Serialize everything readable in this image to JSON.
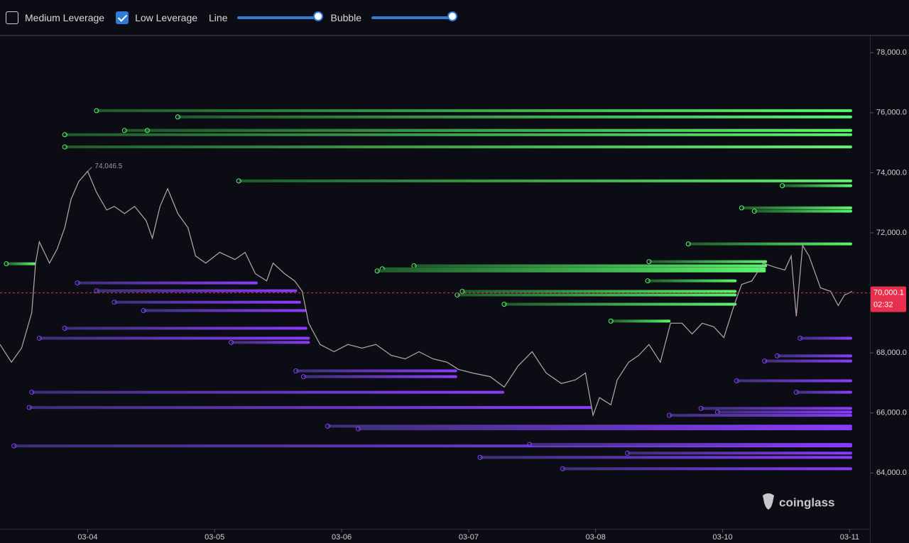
{
  "controls": {
    "medium": {
      "label": "Medium Leverage",
      "checked": false
    },
    "low": {
      "label": "Low Leverage",
      "checked": true
    },
    "line": "Line",
    "bubble": "Bubble"
  },
  "chart_data": {
    "type": "liquidation",
    "brand": "coinglass",
    "ylim": [
      62140,
      78550
    ],
    "yticks": [
      {
        "value": 64000,
        "label": "64,000.0"
      },
      {
        "value": 66000,
        "label": "66,000.0"
      },
      {
        "value": 68000,
        "label": "68,000.0"
      },
      {
        "value": 72000,
        "label": "72,000.0"
      },
      {
        "value": 74000,
        "label": "74,000.0"
      },
      {
        "value": 76000,
        "label": "76,000.0"
      },
      {
        "value": 78000,
        "label": "78,000.0"
      }
    ],
    "xlim": [
      -0.69,
      6.16
    ],
    "xticks": [
      {
        "value": 0,
        "label": "03-04"
      },
      {
        "value": 1,
        "label": "03-05"
      },
      {
        "value": 2,
        "label": "03-06"
      },
      {
        "value": 3,
        "label": "03-07"
      },
      {
        "value": 4,
        "label": "03-08"
      },
      {
        "value": 5,
        "label": "03-10"
      },
      {
        "value": 6,
        "label": "03-11"
      }
    ],
    "high": {
      "x": 0,
      "value": 74046.5,
      "label": "74,046.5"
    },
    "last": {
      "value": 70000.1,
      "label": "70,000.1",
      "countdown": "02:32",
      "color": "#e8304e"
    },
    "price": {
      "color": "#b8a8a8",
      "x": [
        -0.69,
        -0.6,
        -0.52,
        -0.44,
        -0.41,
        -0.38,
        -0.3,
        -0.24,
        -0.18,
        -0.13,
        -0.07,
        0,
        0.07,
        0.15,
        0.21,
        0.29,
        0.37,
        0.46,
        0.51,
        0.57,
        0.63,
        0.71,
        0.79,
        0.85,
        0.93,
        1.04,
        1.16,
        1.24,
        1.32,
        1.41,
        1.46,
        1.55,
        1.63,
        1.69,
        1.74,
        1.83,
        1.94,
        2.05,
        2.16,
        2.27,
        2.39,
        2.5,
        2.61,
        2.72,
        2.83,
        2.92,
        3.03,
        3.17,
        3.28,
        3.39,
        3.5,
        3.61,
        3.73,
        3.84,
        3.92,
        3.98,
        4.03,
        4.12,
        4.17,
        4.26,
        4.34,
        4.42,
        4.51,
        4.59,
        4.68,
        4.76,
        4.84,
        4.93,
        5.01,
        5.09,
        5.15,
        5.23,
        5.32,
        5.4,
        5.49,
        5.54,
        5.58,
        5.63,
        5.68,
        5.77,
        5.85,
        5.91,
        5.96,
        6.02
      ],
      "values": [
        68280,
        67690,
        68160,
        69340,
        70990,
        71700,
        70990,
        71460,
        72170,
        73120,
        73710,
        74050,
        73350,
        72760,
        72880,
        72640,
        72880,
        72410,
        71820,
        72880,
        73470,
        72640,
        72170,
        71230,
        70990,
        71350,
        71110,
        71350,
        70640,
        70400,
        70990,
        70640,
        70400,
        70050,
        68990,
        68280,
        68040,
        68280,
        68160,
        68280,
        67920,
        67800,
        68040,
        67800,
        67690,
        67450,
        67330,
        67210,
        66860,
        67570,
        68040,
        67330,
        66980,
        67100,
        67330,
        65920,
        66510,
        66270,
        67100,
        67690,
        67920,
        68280,
        67690,
        68990,
        68990,
        68630,
        68990,
        68870,
        68510,
        69580,
        70280,
        70400,
        70990,
        70870,
        70760,
        71230,
        69220,
        71580,
        71230,
        70170,
        70050,
        69580,
        69930,
        70050
      ]
    },
    "short_levels": {
      "colors": [
        "#1f5a2c",
        "#5af56c"
      ],
      "price": [
        76070,
        75860,
        75410,
        75410,
        75270,
        74860,
        73730,
        73570,
        72830,
        72720,
        71630,
        71040,
        70900,
        70800,
        70730,
        70400,
        70050,
        69930,
        69620,
        69060,
        70970
      ],
      "x0": [
        0.07,
        0.71,
        0.29,
        0.47,
        -0.18,
        -0.18,
        1.19,
        5.47,
        5.15,
        5.25,
        4.73,
        4.42,
        2.57,
        2.32,
        2.28,
        4.41,
        2.95,
        2.91,
        3.28,
        4.12,
        -0.64
      ],
      "x1": [
        6.02,
        6.02,
        6.02,
        6.02,
        6.02,
        6.02,
        6.02,
        6.02,
        6.02,
        6.02,
        6.02,
        5.35,
        5.35,
        5.34,
        5.34,
        5.11,
        5.11,
        5.11,
        5.11,
        4.59,
        -0.41
      ]
    },
    "long_levels": {
      "colors": [
        "#3e2f78",
        "#8a3cff"
      ],
      "price": [
        70330,
        70070,
        69690,
        69410,
        68820,
        68490,
        68350,
        67400,
        67210,
        66690,
        66180,
        68490,
        67900,
        67730,
        67070,
        66690,
        66150,
        66030,
        65920,
        65560,
        65470,
        64900,
        64950,
        64660,
        64520,
        64140
      ],
      "x0": [
        -0.08,
        0.07,
        0.21,
        0.44,
        -0.18,
        -0.38,
        1.13,
        1.64,
        1.7,
        -0.44,
        -0.46,
        5.61,
        5.43,
        5.33,
        5.11,
        5.58,
        4.83,
        4.96,
        4.58,
        1.89,
        2.13,
        -0.58,
        3.48,
        4.25,
        3.09,
        3.74
      ],
      "x1": [
        1.34,
        1.65,
        1.68,
        1.72,
        1.73,
        1.75,
        1.75,
        2.91,
        2.91,
        3.28,
        3.97,
        6.02,
        6.02,
        6.02,
        6.02,
        6.02,
        6.02,
        6.02,
        6.02,
        6.02,
        6.02,
        6.02,
        6.02,
        6.02,
        6.02,
        6.02
      ]
    }
  }
}
